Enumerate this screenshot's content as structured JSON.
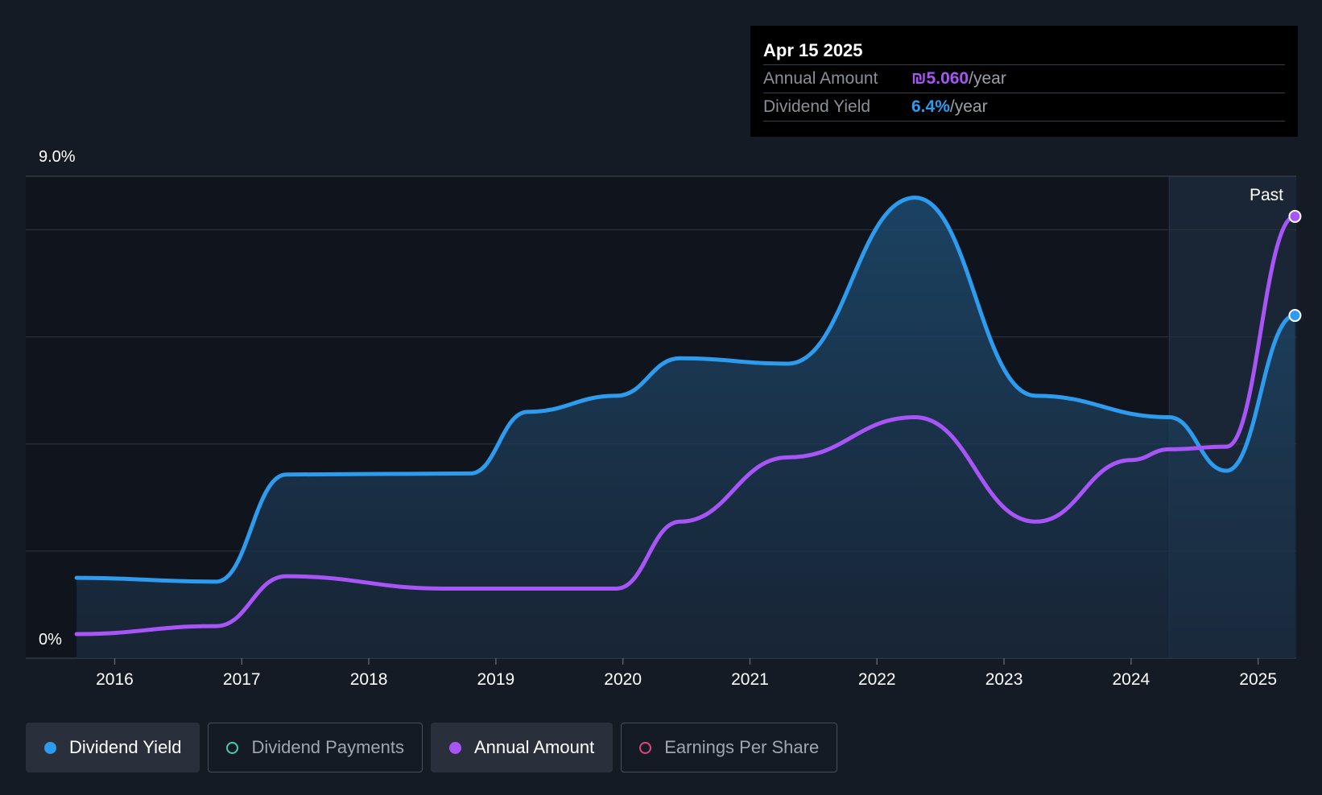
{
  "tooltip": {
    "date": "Apr 15 2025",
    "annual_amount_label": "Annual Amount",
    "annual_amount_value": "₪5.060",
    "annual_amount_unit": "/year",
    "dividend_yield_label": "Dividend Yield",
    "dividend_yield_value": "6.4%",
    "dividend_yield_unit": "/year"
  },
  "legend": [
    {
      "label": "Dividend Yield",
      "active": true,
      "color": "#2d9cef"
    },
    {
      "label": "Dividend Payments",
      "active": false,
      "color": "#4ec9b0"
    },
    {
      "label": "Annual Amount",
      "active": true,
      "color": "#a855f7"
    },
    {
      "label": "Earnings Per Share",
      "active": false,
      "color": "#e0457b"
    }
  ],
  "chart_data": {
    "type": "line",
    "y_top_label": "9.0%",
    "y_bottom_label": "0%",
    "ylim": [
      0,
      9.0
    ],
    "past_label": "Past",
    "past_start": 2024.3,
    "x_ticks": [
      "2016",
      "2017",
      "2018",
      "2019",
      "2020",
      "2021",
      "2022",
      "2023",
      "2024",
      "2025"
    ],
    "xlim": [
      2015.3,
      2025.3
    ],
    "grid": true,
    "colors": {
      "yield": "#2d9cef",
      "amount": "#a855f7"
    },
    "series": [
      {
        "name": "Dividend Yield",
        "x": [
          2015.7,
          2016.8,
          2017.35,
          2018.8,
          2019.25,
          2019.95,
          2020.45,
          2021.3,
          2022.3,
          2023.25,
          2024.3,
          2024.75,
          2025.29
        ],
        "y": [
          1.5,
          1.43,
          3.43,
          3.45,
          4.6,
          4.9,
          5.6,
          5.5,
          8.6,
          4.9,
          4.5,
          3.5,
          6.4
        ]
      },
      {
        "name": "Annual Amount",
        "x": [
          2015.7,
          2016.8,
          2017.35,
          2018.6,
          2019.95,
          2020.45,
          2021.3,
          2022.3,
          2023.25,
          2024.0,
          2024.3,
          2024.75,
          2025.29
        ],
        "y": [
          0.45,
          0.6,
          1.53,
          1.3,
          1.3,
          2.55,
          3.75,
          4.5,
          2.55,
          3.7,
          3.9,
          3.95,
          8.25
        ]
      }
    ]
  }
}
